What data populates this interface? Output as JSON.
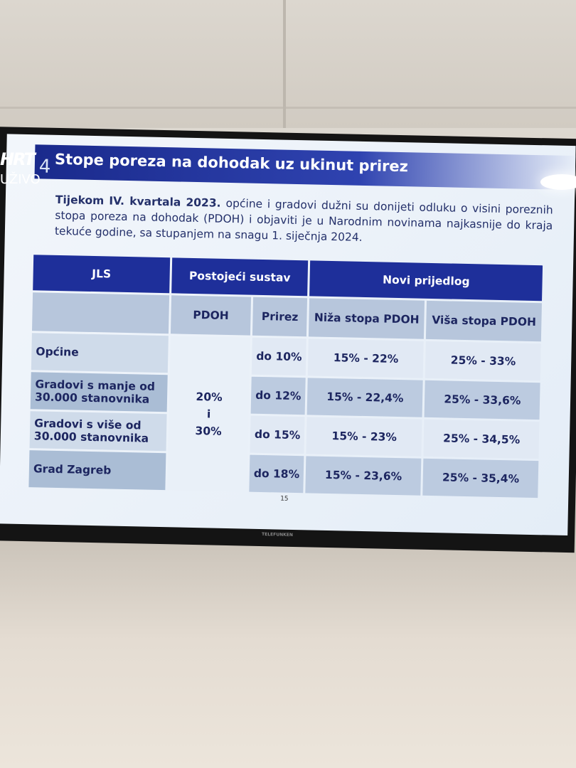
{
  "overlay": {
    "logo": "HRT",
    "live": "UŽIVO"
  },
  "slide": {
    "number": "4",
    "title": "Stope poreza na dohodak uz ukinut prirez",
    "intro_bold_1": "Tijekom IV. kvartala 2023.",
    "intro_text": "općine i gradovi dužni su donijeti odluku o visini poreznih stopa poreza na dohodak (PDOH) i objaviti je u Narodnim novinama najkasnije do kraja tekuće godine, sa stupanjem na snagu 1. siječnja 2024.",
    "table": {
      "header": [
        "JLS",
        "Postojeći sustav",
        "Novi prijedlog"
      ],
      "subheader": [
        "PDOH",
        "Prirez",
        "Niža stopa PDOH",
        "Viša stopa PDOH"
      ],
      "pdoh": [
        "20%",
        "i",
        "30%"
      ],
      "rows": [
        {
          "jls": "Općine",
          "prirez": "do 10%",
          "low": "15% - 22%",
          "high": "25% - 33%"
        },
        {
          "jls": "Gradovi s manje od 30.000 stanovnika",
          "prirez": "do 12%",
          "low": "15% - 22,4%",
          "high": "25% - 33,6%"
        },
        {
          "jls": "Gradovi s više od 30.000 stanovnika",
          "prirez": "do 15%",
          "low": "15% - 23%",
          "high": "25% - 34,5%"
        },
        {
          "jls": "Grad Zagreb",
          "prirez": "do 18%",
          "low": "15% - 23,6%",
          "high": "25% - 35,4%"
        }
      ]
    },
    "page": "15"
  },
  "tv": {
    "brand": "TELEFUNKEN"
  }
}
